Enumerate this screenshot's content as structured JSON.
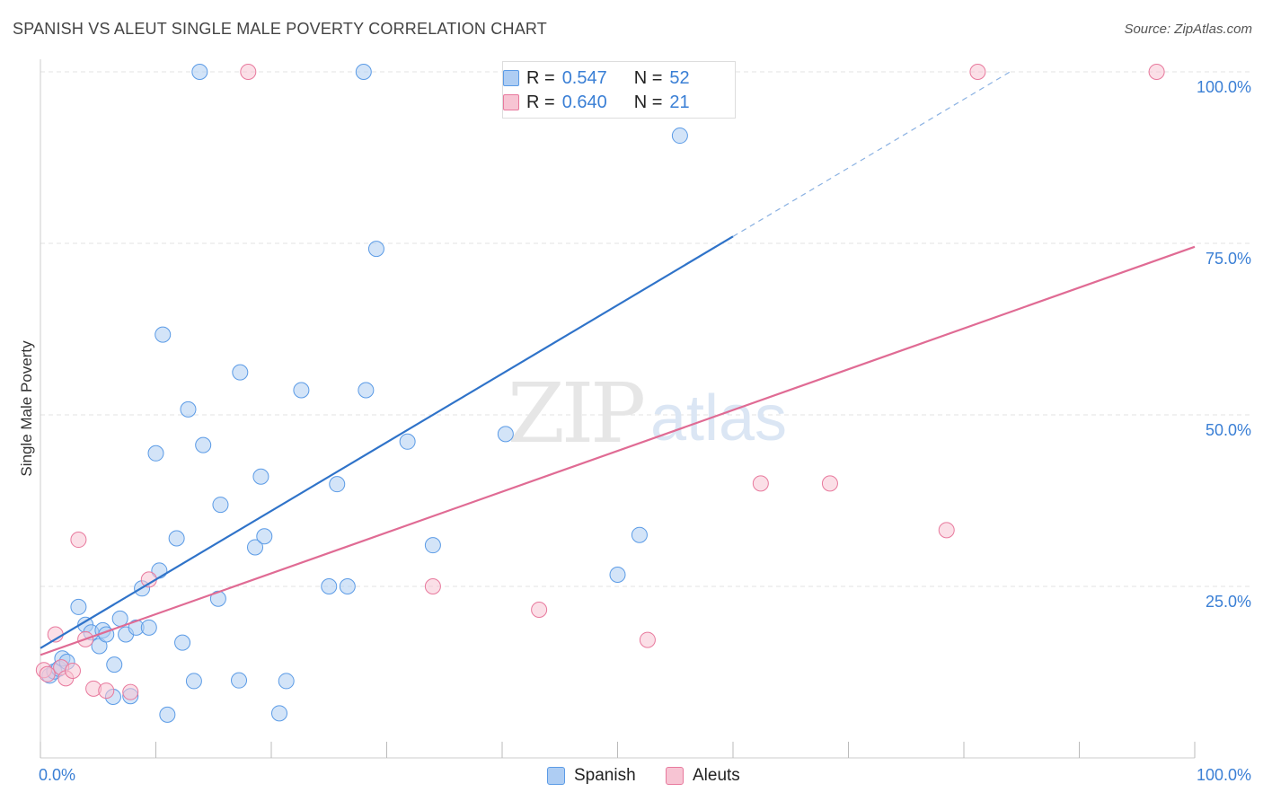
{
  "title": "SPANISH VS ALEUT SINGLE MALE POVERTY CORRELATION CHART",
  "source": "Source: ZipAtlas.com",
  "watermark": {
    "zip": "ZIP",
    "atlas": "atlas"
  },
  "legend": {
    "rows": [
      {
        "r_label": "R =",
        "r_value": "0.547",
        "n_label": "N =",
        "n_value": "52"
      },
      {
        "r_label": "R =",
        "r_value": "0.640",
        "n_label": "N =",
        "n_value": "21"
      }
    ]
  },
  "chart_data": {
    "type": "scatter",
    "title": "SPANISH VS ALEUT SINGLE MALE POVERTY CORRELATION CHART",
    "xlabel": "",
    "ylabel": "Single Male Poverty",
    "xlim": [
      0,
      100
    ],
    "ylim": [
      0,
      100
    ],
    "x_tick_labels": [
      "0.0%",
      "100.0%"
    ],
    "y_tick_values": [
      25,
      50,
      75,
      100
    ],
    "y_tick_labels": [
      "25.0%",
      "50.0%",
      "75.0%",
      "100.0%"
    ],
    "grid": true,
    "legend_position": "top-center",
    "series": [
      {
        "name": "Spanish",
        "color": "#5b9be6",
        "fill": "#aecdf3",
        "r": "0.547",
        "n": "52",
        "trend": {
          "x0": 0,
          "y0": 16.0,
          "x1": 60,
          "y1": 76.0,
          "dash_to_x": 84,
          "dash_to_y": 100
        },
        "points": [
          [
            0.8,
            12.0
          ],
          [
            1.2,
            12.6
          ],
          [
            1.6,
            13.0
          ],
          [
            1.9,
            14.5
          ],
          [
            2.3,
            14.0
          ],
          [
            3.3,
            22.0
          ],
          [
            3.9,
            19.4
          ],
          [
            4.4,
            18.3
          ],
          [
            5.1,
            16.3
          ],
          [
            5.4,
            18.6
          ],
          [
            5.7,
            18.0
          ],
          [
            6.3,
            8.9
          ],
          [
            6.4,
            13.6
          ],
          [
            6.9,
            20.3
          ],
          [
            7.4,
            18.0
          ],
          [
            7.8,
            9.0
          ],
          [
            8.3,
            19.0
          ],
          [
            8.8,
            24.7
          ],
          [
            9.4,
            19.0
          ],
          [
            10.0,
            44.4
          ],
          [
            10.3,
            27.3
          ],
          [
            10.6,
            61.7
          ],
          [
            11.0,
            6.3
          ],
          [
            11.8,
            32.0
          ],
          [
            12.3,
            16.8
          ],
          [
            12.8,
            50.8
          ],
          [
            13.3,
            11.2
          ],
          [
            13.8,
            100.0
          ],
          [
            14.1,
            45.6
          ],
          [
            15.4,
            23.2
          ],
          [
            15.6,
            36.9
          ],
          [
            17.2,
            11.3
          ],
          [
            17.3,
            56.2
          ],
          [
            18.6,
            30.7
          ],
          [
            19.1,
            41.0
          ],
          [
            19.4,
            32.3
          ],
          [
            20.7,
            6.5
          ],
          [
            21.3,
            11.2
          ],
          [
            22.6,
            53.6
          ],
          [
            25.0,
            25.0
          ],
          [
            25.7,
            39.9
          ],
          [
            26.6,
            25.0
          ],
          [
            28.0,
            100.0
          ],
          [
            28.2,
            53.6
          ],
          [
            29.1,
            74.2
          ],
          [
            31.8,
            46.1
          ],
          [
            34.0,
            31.0
          ],
          [
            40.3,
            47.2
          ],
          [
            41.3,
            100.0
          ],
          [
            50.0,
            26.7
          ],
          [
            51.9,
            32.5
          ],
          [
            55.4,
            90.7
          ]
        ]
      },
      {
        "name": "Aleuts",
        "color": "#e8799d",
        "fill": "#f7c4d3",
        "r": "0.640",
        "n": "21",
        "trend": {
          "x0": 0,
          "y0": 15.0,
          "x1": 100,
          "y1": 74.5
        },
        "points": [
          [
            0.3,
            12.8
          ],
          [
            0.6,
            12.2
          ],
          [
            1.3,
            18.0
          ],
          [
            1.8,
            13.2
          ],
          [
            2.2,
            11.6
          ],
          [
            2.8,
            12.7
          ],
          [
            3.3,
            31.8
          ],
          [
            3.9,
            17.3
          ],
          [
            4.6,
            10.1
          ],
          [
            5.7,
            9.8
          ],
          [
            7.8,
            9.6
          ],
          [
            9.4,
            26.0
          ],
          [
            18.0,
            100.0
          ],
          [
            34.0,
            25.0
          ],
          [
            43.2,
            21.6
          ],
          [
            52.6,
            17.2
          ],
          [
            62.4,
            40.0
          ],
          [
            68.4,
            40.0
          ],
          [
            78.5,
            33.2
          ],
          [
            81.2,
            100.0
          ],
          [
            96.7,
            100.0
          ]
        ]
      }
    ]
  }
}
